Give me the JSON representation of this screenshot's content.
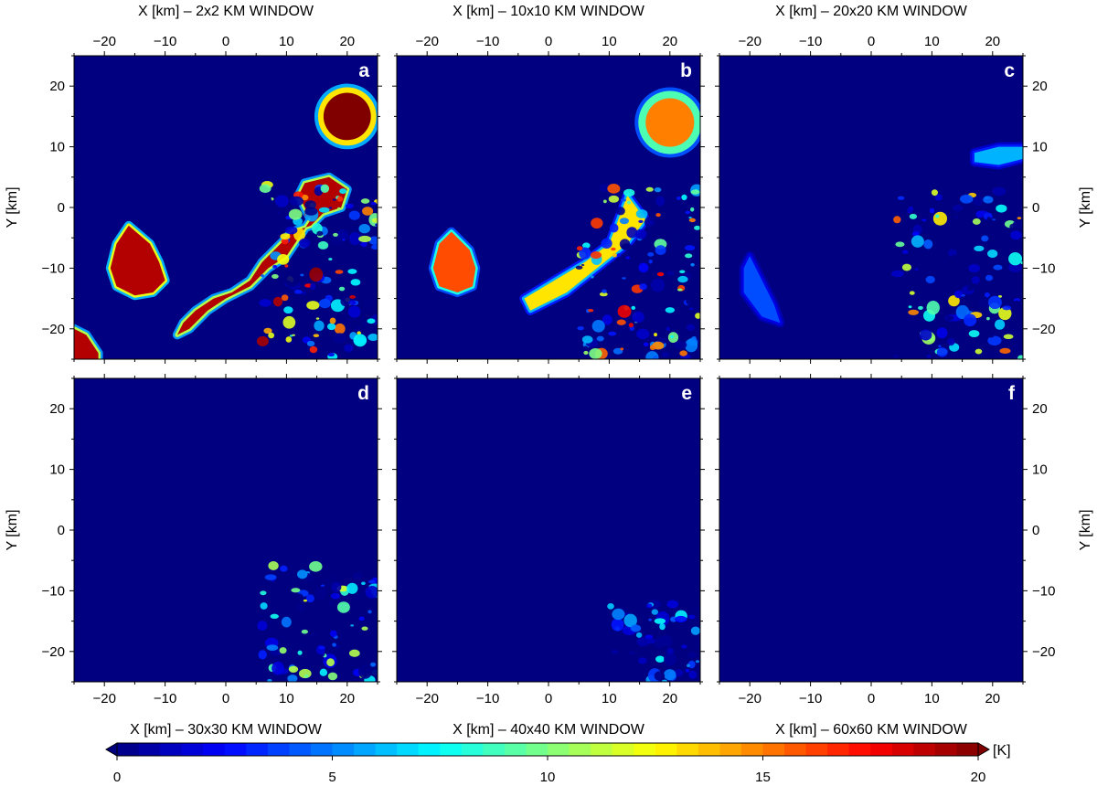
{
  "chart_data": {
    "type": "heatmap",
    "layout": "2 rows x 3 columns of map panels with one shared colorbar",
    "panels": [
      {
        "letter": "a",
        "window_title": "X [km] – 2x2 KM WINDOW",
        "x_title_position": "top",
        "features": [
          {
            "shape": "disk",
            "cx": 20,
            "cy": 15,
            "r": 4.8,
            "value": 20,
            "ring": 13,
            "ring_width": 0.9
          },
          {
            "shape": "blob",
            "points": [
              [
                -16,
                -3
              ],
              [
                -12.5,
                -6
              ],
              [
                -11,
                -9
              ],
              [
                -10,
                -12
              ],
              [
                -12,
                -14
              ],
              [
                -15,
                -14.5
              ],
              [
                -18,
                -13
              ],
              [
                -19,
                -10
              ],
              [
                -18,
                -6
              ]
            ],
            "value": 19,
            "halo": 12
          },
          {
            "shape": "blob",
            "points": [
              [
                13,
                4
              ],
              [
                17,
                5
              ],
              [
                20,
                3
              ],
              [
                19,
                0
              ],
              [
                16,
                -1
              ],
              [
                14,
                -3
              ],
              [
                11,
                -4
              ],
              [
                8,
                -7
              ],
              [
                6,
                -9
              ],
              [
                4,
                -12
              ],
              [
                1,
                -14
              ],
              [
                -2,
                -15
              ],
              [
                -5,
                -17
              ],
              [
                -7,
                -19
              ],
              [
                -8,
                -21
              ],
              [
                -6,
                -20
              ],
              [
                -3,
                -17
              ],
              [
                0,
                -15
              ],
              [
                4,
                -13
              ],
              [
                7,
                -10
              ],
              [
                10,
                -8
              ],
              [
                12,
                -5
              ],
              [
                14,
                -2
              ],
              [
                12,
                2
              ]
            ],
            "value": 19,
            "halo": 11
          },
          {
            "shape": "blob",
            "points": [
              [
                -25,
                -20
              ],
              [
                -23,
                -21
              ],
              [
                -21,
                -24
              ],
              [
                -21,
                -25
              ],
              [
                -25,
                -25
              ]
            ],
            "value": 19,
            "halo": 11
          },
          {
            "shape": "texture",
            "x0": 6,
            "x1": 25,
            "y0": -25,
            "y1": 4,
            "density": 0.55,
            "max": 20
          }
        ]
      },
      {
        "letter": "b",
        "window_title": "X [km] – 10x10 KM WINDOW",
        "x_title_position": "top",
        "features": [
          {
            "shape": "disk",
            "cx": 20,
            "cy": 14,
            "r": 5.2,
            "value": 15,
            "ring": 9,
            "ring_width": 1.2
          },
          {
            "shape": "blob",
            "points": [
              [
                -16,
                -4
              ],
              [
                -13,
                -7
              ],
              [
                -12,
                -10
              ],
              [
                -12.5,
                -13
              ],
              [
                -15,
                -14
              ],
              [
                -18,
                -13
              ],
              [
                -19,
                -10
              ],
              [
                -18,
                -6
              ]
            ],
            "value": 16,
            "halo": 8
          },
          {
            "shape": "blob",
            "points": [
              [
                13,
                2
              ],
              [
                16,
                -2
              ],
              [
                13,
                -6
              ],
              [
                8,
                -10
              ],
              [
                3,
                -14
              ],
              [
                -3,
                -17
              ],
              [
                -4,
                -15
              ],
              [
                1,
                -12
              ],
              [
                6,
                -9
              ],
              [
                10,
                -6
              ]
            ],
            "value": 13,
            "halo": 6
          },
          {
            "shape": "texture",
            "x0": 5,
            "x1": 25,
            "y0": -25,
            "y1": 4,
            "density": 0.5,
            "max": 18
          }
        ]
      },
      {
        "letter": "c",
        "window_title": "X [km] – 20x20 KM WINDOW",
        "x_title_position": "top",
        "features": [
          {
            "shape": "blob",
            "points": [
              [
                17,
                9
              ],
              [
                21,
                10
              ],
              [
                25,
                10
              ],
              [
                25,
                8
              ],
              [
                21,
                7
              ],
              [
                17,
                7.5
              ]
            ],
            "value": 6,
            "halo": 3
          },
          {
            "shape": "blob",
            "points": [
              [
                -20,
                -8
              ],
              [
                -18,
                -12
              ],
              [
                -16,
                -16
              ],
              [
                -15,
                -19
              ],
              [
                -18,
                -18
              ],
              [
                -21,
                -14
              ],
              [
                -21,
                -10
              ]
            ],
            "value": 4,
            "halo": 2
          },
          {
            "shape": "texture",
            "x0": 4,
            "x1": 25,
            "y0": -25,
            "y1": 3,
            "density": 0.42,
            "max": 16
          }
        ]
      },
      {
        "letter": "d",
        "window_title": "X [km] – 30x30 KM WINDOW",
        "x_title_position": "bottom",
        "features": [
          {
            "shape": "texture",
            "x0": 6,
            "x1": 25,
            "y0": -25,
            "y1": -5,
            "density": 0.35,
            "max": 12
          }
        ]
      },
      {
        "letter": "e",
        "window_title": "X [km] – 40x40 KM WINDOW",
        "x_title_position": "bottom",
        "features": [
          {
            "shape": "texture",
            "x0": 10,
            "x1": 25,
            "y0": -25,
            "y1": -12,
            "density": 0.22,
            "max": 8
          }
        ]
      },
      {
        "letter": "f",
        "window_title": "X [km] – 60x60 KM WINDOW",
        "x_title_position": "bottom",
        "features": []
      }
    ],
    "x_range": [
      -25,
      25
    ],
    "y_range": [
      -25,
      25
    ],
    "x_ticks": [
      "−20",
      "−10",
      "0",
      "10",
      "20"
    ],
    "y_ticks": [
      "20",
      "10",
      "0",
      "−10",
      "−20"
    ],
    "ylabel": "Y [km]",
    "background_value": 0,
    "colorbar": {
      "unit": "[K]",
      "range": [
        0,
        20
      ],
      "tick_labels": [
        "0",
        "5",
        "10",
        "15",
        "20"
      ],
      "bins": 40,
      "colormap": "jet"
    }
  }
}
